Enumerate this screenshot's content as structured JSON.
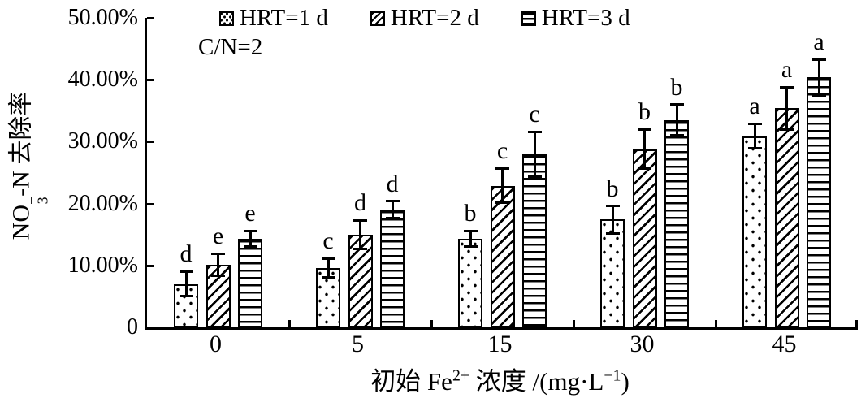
{
  "colors": {
    "foreground": "#000000",
    "background": "#ffffff"
  },
  "chart_data": {
    "type": "bar",
    "title": "",
    "annotation": "C/N=2",
    "categories": [
      "0",
      "5",
      "15",
      "30",
      "45"
    ],
    "series": [
      {
        "name": "HRT=1 d",
        "pattern": "dots",
        "values": [
          7.0,
          9.6,
          14.3,
          17.4,
          30.9
        ],
        "errors": [
          2.0,
          1.5,
          1.3,
          2.2,
          2.0
        ],
        "letters": [
          "d",
          "c",
          "b",
          "b",
          "a"
        ]
      },
      {
        "name": "HRT=2 d",
        "pattern": "diagonal",
        "values": [
          10.1,
          15.0,
          22.9,
          28.8,
          35.4
        ],
        "errors": [
          1.8,
          2.3,
          2.8,
          3.2,
          3.4
        ],
        "letters": [
          "e",
          "d",
          "c",
          "b",
          "a"
        ]
      },
      {
        "name": "HRT=3 d",
        "pattern": "hlines",
        "values": [
          14.3,
          19.0,
          28.0,
          33.5,
          40.4
        ],
        "errors": [
          1.3,
          1.4,
          3.6,
          2.5,
          2.9
        ],
        "letters": [
          "e",
          "d",
          "c",
          "b",
          "a"
        ]
      }
    ],
    "xlabel": {
      "text": "初始 Fe2+ 浓度 /(mg·L−1)",
      "segments": [
        {
          "t": "初始 Fe"
        },
        {
          "sup": "2+"
        },
        {
          "t": " 浓度 /(mg·L"
        },
        {
          "sup": "−1"
        },
        {
          "t": ")"
        }
      ]
    },
    "ylabel": {
      "text": "NO3−-N 去除率",
      "segments": [
        {
          "t": "NO"
        },
        {
          "stack": {
            "sup": "−",
            "sub": "3"
          }
        },
        {
          "t": "-N 去除率"
        }
      ]
    },
    "ylim": [
      0,
      50
    ],
    "yticks": [
      {
        "label": "0",
        "value": 0
      },
      {
        "label": "10.00%",
        "value": 10
      },
      {
        "label": "20.00%",
        "value": 20
      },
      {
        "label": "30.00%",
        "value": 30
      },
      {
        "label": "40.00%",
        "value": 40
      },
      {
        "label": "50.00%",
        "value": 50
      }
    ],
    "legend_position": "top",
    "grid": false
  }
}
